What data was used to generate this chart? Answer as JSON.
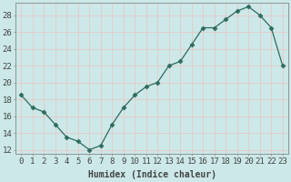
{
  "x": [
    0,
    1,
    2,
    3,
    4,
    5,
    6,
    7,
    8,
    9,
    10,
    11,
    12,
    13,
    14,
    15,
    16,
    17,
    18,
    19,
    20,
    21,
    22,
    23
  ],
  "y": [
    18.5,
    17.0,
    16.5,
    15.0,
    13.5,
    13.0,
    12.0,
    12.5,
    15.0,
    17.0,
    18.5,
    19.5,
    20.0,
    22.0,
    22.5,
    24.5,
    26.5,
    26.5,
    27.5,
    28.5,
    29.0,
    28.0,
    26.5,
    22.0
  ],
  "xlabel": "Humidex (Indice chaleur)",
  "line_color": "#2e6b5e",
  "marker": "D",
  "marker_size": 2.5,
  "bg_color": "#cce8e8",
  "grid_color": "#e8c8c8",
  "xlim": [
    -0.5,
    23.5
  ],
  "ylim": [
    11.5,
    29.5
  ],
  "yticks": [
    12,
    14,
    16,
    18,
    20,
    22,
    24,
    26,
    28
  ],
  "xticks": [
    0,
    1,
    2,
    3,
    4,
    5,
    6,
    7,
    8,
    9,
    10,
    11,
    12,
    13,
    14,
    15,
    16,
    17,
    18,
    19,
    20,
    21,
    22,
    23
  ],
  "xlabel_fontsize": 7,
  "tick_fontsize": 6.5,
  "spine_color": "#888888",
  "tick_color": "#444444"
}
